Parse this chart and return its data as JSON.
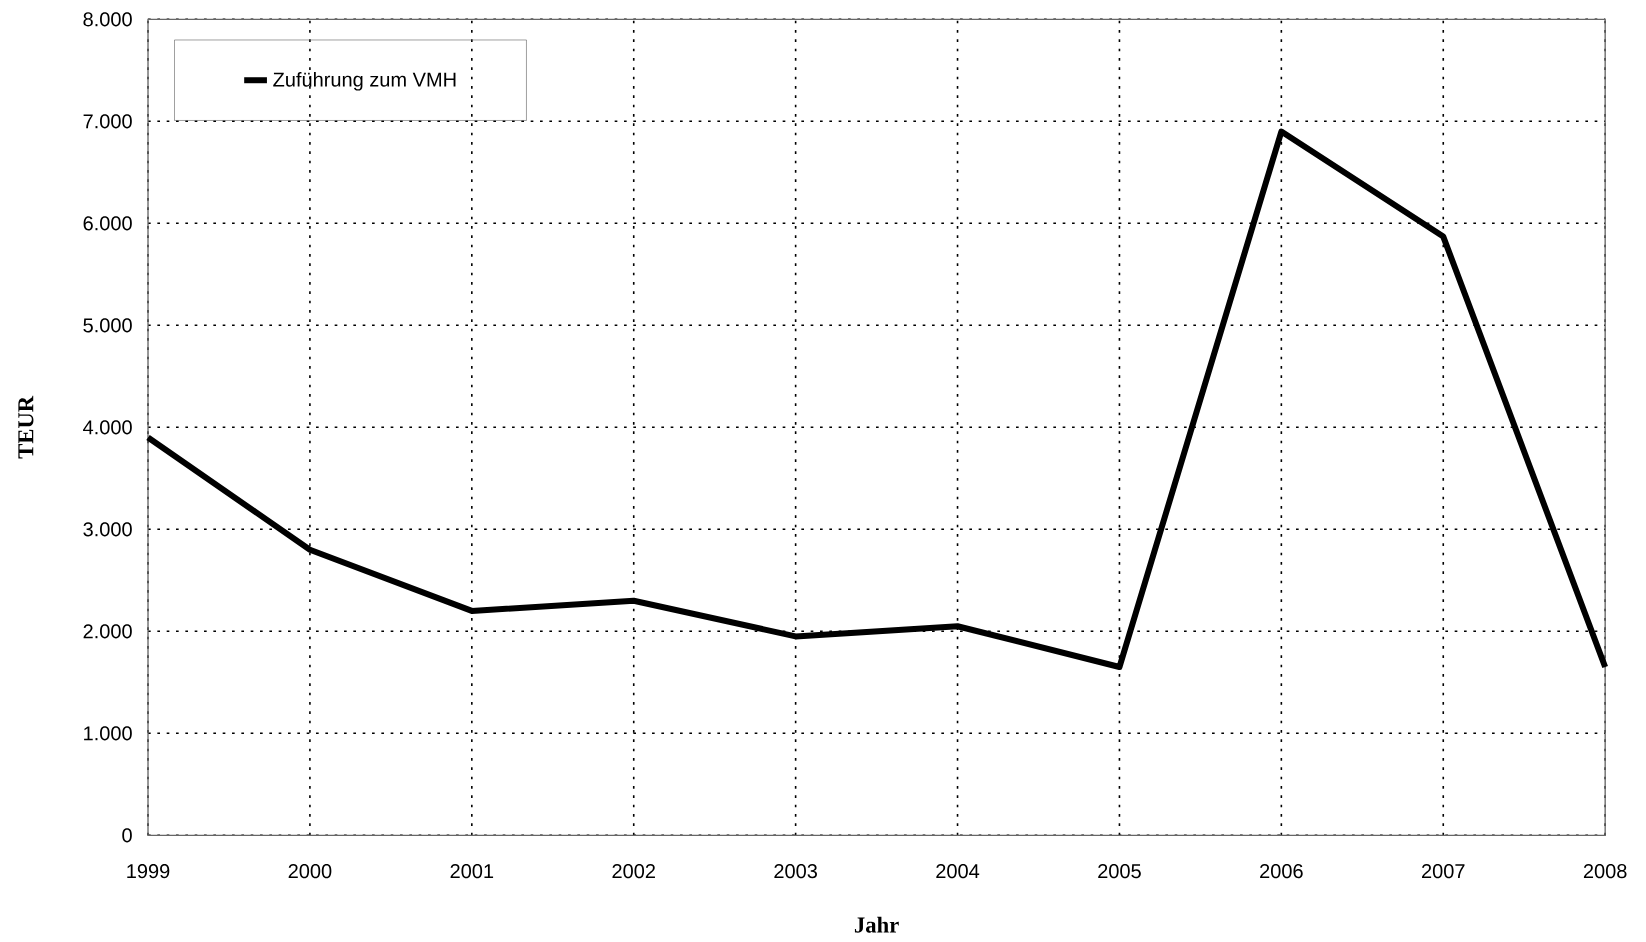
{
  "chart_data": {
    "type": "line",
    "xlabel": "Jahr",
    "ylabel": "TEUR",
    "x": [
      1999,
      2000,
      2001,
      2002,
      2003,
      2004,
      2005,
      2006,
      2007,
      2008
    ],
    "series": [
      {
        "name": "Zuführung zum VMH",
        "color": "#000000",
        "values": [
          3900,
          2800,
          2200,
          2300,
          1950,
          2050,
          1650,
          6900,
          5870,
          1650
        ]
      }
    ],
    "xlim": [
      1999,
      2008
    ],
    "xticks": [
      1999,
      2000,
      2001,
      2002,
      2003,
      2004,
      2005,
      2006,
      2007,
      2008
    ],
    "ylim": [
      0,
      8000
    ],
    "yticks": [
      {
        "value": 0,
        "label": "0"
      },
      {
        "value": 1000,
        "label": "1.000"
      },
      {
        "value": 2000,
        "label": "2.000"
      },
      {
        "value": 3000,
        "label": "3.000"
      },
      {
        "value": 4000,
        "label": "4.000"
      },
      {
        "value": 5000,
        "label": "5.000"
      },
      {
        "value": 6000,
        "label": "6.000"
      },
      {
        "value": 7000,
        "label": "7.000"
      },
      {
        "value": 8000,
        "label": "8.000"
      }
    ],
    "grid": true,
    "legend": "top left",
    "marker": "none",
    "line_style": "solid"
  }
}
